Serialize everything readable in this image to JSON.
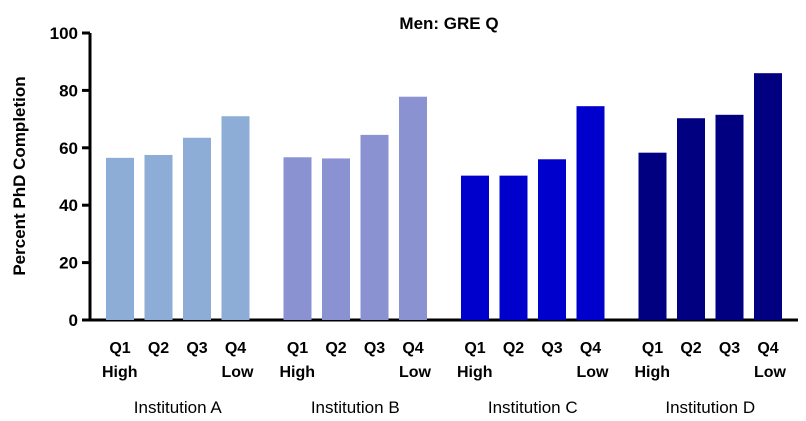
{
  "chart_data": {
    "type": "bar",
    "title": "Men: GRE Q",
    "ylabel": "Percent PhD Completion",
    "xlabel": "",
    "ylim": [
      0,
      100
    ],
    "yticks": [
      0,
      20,
      40,
      60,
      80,
      100
    ],
    "grid": false,
    "legend": "none",
    "bar_labels": [
      [
        "Q1",
        "High"
      ],
      [
        "Q2",
        ""
      ],
      [
        "Q3",
        ""
      ],
      [
        "Q4",
        "Low"
      ]
    ],
    "groups": [
      {
        "name": "Institution A",
        "color": "#8eadd6",
        "values": [
          56.5,
          57.5,
          63.5,
          71
        ]
      },
      {
        "name": "Institution B",
        "color": "#8b92d2",
        "values": [
          56.7,
          56.3,
          64.5,
          77.8
        ]
      },
      {
        "name": "Institution C",
        "color": "#0000cc",
        "values": [
          50.3,
          50.3,
          56,
          74.5
        ]
      },
      {
        "name": "Institution D",
        "color": "#000080",
        "values": [
          58.3,
          70.3,
          71.5,
          86
        ]
      }
    ]
  }
}
